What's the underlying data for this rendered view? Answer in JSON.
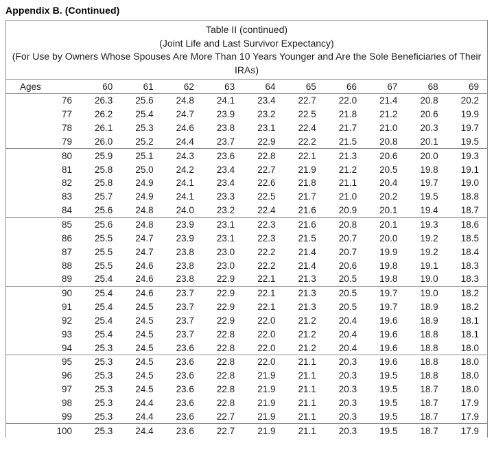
{
  "page_heading": "Appendix B. (Continued)",
  "table": {
    "title_lines": [
      "Table II (continued)",
      "(Joint Life and Last Survivor Expectancy)",
      "(For Use by Owners Whose Spouses Are More Than 10 Years Younger and Are the Sole Beneficiaries of Their",
      "IRAs)"
    ],
    "columns": [
      "Ages",
      "60",
      "61",
      "62",
      "63",
      "64",
      "65",
      "66",
      "67",
      "68",
      "69"
    ],
    "group_breaks_after": [
      79,
      84,
      89,
      94,
      99
    ],
    "rows": [
      {
        "age": 76,
        "values": [
          "26.3",
          "25.6",
          "24.8",
          "24.1",
          "23.4",
          "22.7",
          "22.0",
          "21.4",
          "20.8",
          "20.2"
        ]
      },
      {
        "age": 77,
        "values": [
          "26.2",
          "25.4",
          "24.7",
          "23.9",
          "23.2",
          "22.5",
          "21.8",
          "21.2",
          "20.6",
          "19.9"
        ]
      },
      {
        "age": 78,
        "values": [
          "26.1",
          "25.3",
          "24.6",
          "23.8",
          "23.1",
          "22.4",
          "21.7",
          "21.0",
          "20.3",
          "19.7"
        ]
      },
      {
        "age": 79,
        "values": [
          "26.0",
          "25.2",
          "24.4",
          "23.7",
          "22.9",
          "22.2",
          "21.5",
          "20.8",
          "20.1",
          "19.5"
        ]
      },
      {
        "age": 80,
        "values": [
          "25.9",
          "25.1",
          "24.3",
          "23.6",
          "22.8",
          "22.1",
          "21.3",
          "20.6",
          "20.0",
          "19.3"
        ]
      },
      {
        "age": 81,
        "values": [
          "25.8",
          "25.0",
          "24.2",
          "23.4",
          "22.7",
          "21.9",
          "21.2",
          "20.5",
          "19.8",
          "19.1"
        ]
      },
      {
        "age": 82,
        "values": [
          "25.8",
          "24.9",
          "24.1",
          "23.4",
          "22.6",
          "21.8",
          "21.1",
          "20.4",
          "19.7",
          "19.0"
        ]
      },
      {
        "age": 83,
        "values": [
          "25.7",
          "24.9",
          "24.1",
          "23.3",
          "22.5",
          "21.7",
          "21.0",
          "20.2",
          "19.5",
          "18.8"
        ]
      },
      {
        "age": 84,
        "values": [
          "25.6",
          "24.8",
          "24.0",
          "23.2",
          "22.4",
          "21.6",
          "20.9",
          "20.1",
          "19.4",
          "18.7"
        ]
      },
      {
        "age": 85,
        "values": [
          "25.6",
          "24.8",
          "23.9",
          "23.1",
          "22.3",
          "21.6",
          "20.8",
          "20.1",
          "19.3",
          "18.6"
        ]
      },
      {
        "age": 86,
        "values": [
          "25.5",
          "24.7",
          "23.9",
          "23.1",
          "22.3",
          "21.5",
          "20.7",
          "20.0",
          "19.2",
          "18.5"
        ]
      },
      {
        "age": 87,
        "values": [
          "25.5",
          "24.7",
          "23.8",
          "23.0",
          "22.2",
          "21.4",
          "20.7",
          "19.9",
          "19.2",
          "18.4"
        ]
      },
      {
        "age": 88,
        "values": [
          "25.5",
          "24.6",
          "23.8",
          "23.0",
          "22.2",
          "21.4",
          "20.6",
          "19.8",
          "19.1",
          "18.3"
        ]
      },
      {
        "age": 89,
        "values": [
          "25.4",
          "24.6",
          "23.8",
          "22.9",
          "22.1",
          "21.3",
          "20.5",
          "19.8",
          "19.0",
          "18.3"
        ]
      },
      {
        "age": 90,
        "values": [
          "25.4",
          "24.6",
          "23.7",
          "22.9",
          "22.1",
          "21.3",
          "20.5",
          "19.7",
          "19.0",
          "18.2"
        ]
      },
      {
        "age": 91,
        "values": [
          "25.4",
          "24.5",
          "23.7",
          "22.9",
          "22.1",
          "21.3",
          "20.5",
          "19.7",
          "18.9",
          "18.2"
        ]
      },
      {
        "age": 92,
        "values": [
          "25.4",
          "24.5",
          "23.7",
          "22.9",
          "22.0",
          "21.2",
          "20.4",
          "19.6",
          "18.9",
          "18.1"
        ]
      },
      {
        "age": 93,
        "values": [
          "25.4",
          "24.5",
          "23.7",
          "22.8",
          "22.0",
          "21.2",
          "20.4",
          "19.6",
          "18.8",
          "18.1"
        ]
      },
      {
        "age": 94,
        "values": [
          "25.3",
          "24.5",
          "23.6",
          "22.8",
          "22.0",
          "21.2",
          "20.4",
          "19.6",
          "18.8",
          "18.0"
        ]
      },
      {
        "age": 95,
        "values": [
          "25.3",
          "24.5",
          "23.6",
          "22.8",
          "22.0",
          "21.1",
          "20.3",
          "19.6",
          "18.8",
          "18.0"
        ]
      },
      {
        "age": 96,
        "values": [
          "25.3",
          "24.5",
          "23.6",
          "22.8",
          "21.9",
          "21.1",
          "20.3",
          "19.5",
          "18.8",
          "18.0"
        ]
      },
      {
        "age": 97,
        "values": [
          "25.3",
          "24.5",
          "23.6",
          "22.8",
          "21.9",
          "21.1",
          "20.3",
          "19.5",
          "18.7",
          "18.0"
        ]
      },
      {
        "age": 98,
        "values": [
          "25.3",
          "24.4",
          "23.6",
          "22.8",
          "21.9",
          "21.1",
          "20.3",
          "19.5",
          "18.7",
          "17.9"
        ]
      },
      {
        "age": 99,
        "values": [
          "25.3",
          "24.4",
          "23.6",
          "22.7",
          "21.9",
          "21.1",
          "20.3",
          "19.5",
          "18.7",
          "17.9"
        ]
      },
      {
        "age": 100,
        "values": [
          "25.3",
          "24.4",
          "23.6",
          "22.7",
          "21.9",
          "21.1",
          "20.3",
          "19.5",
          "18.7",
          "17.9"
        ]
      }
    ]
  }
}
